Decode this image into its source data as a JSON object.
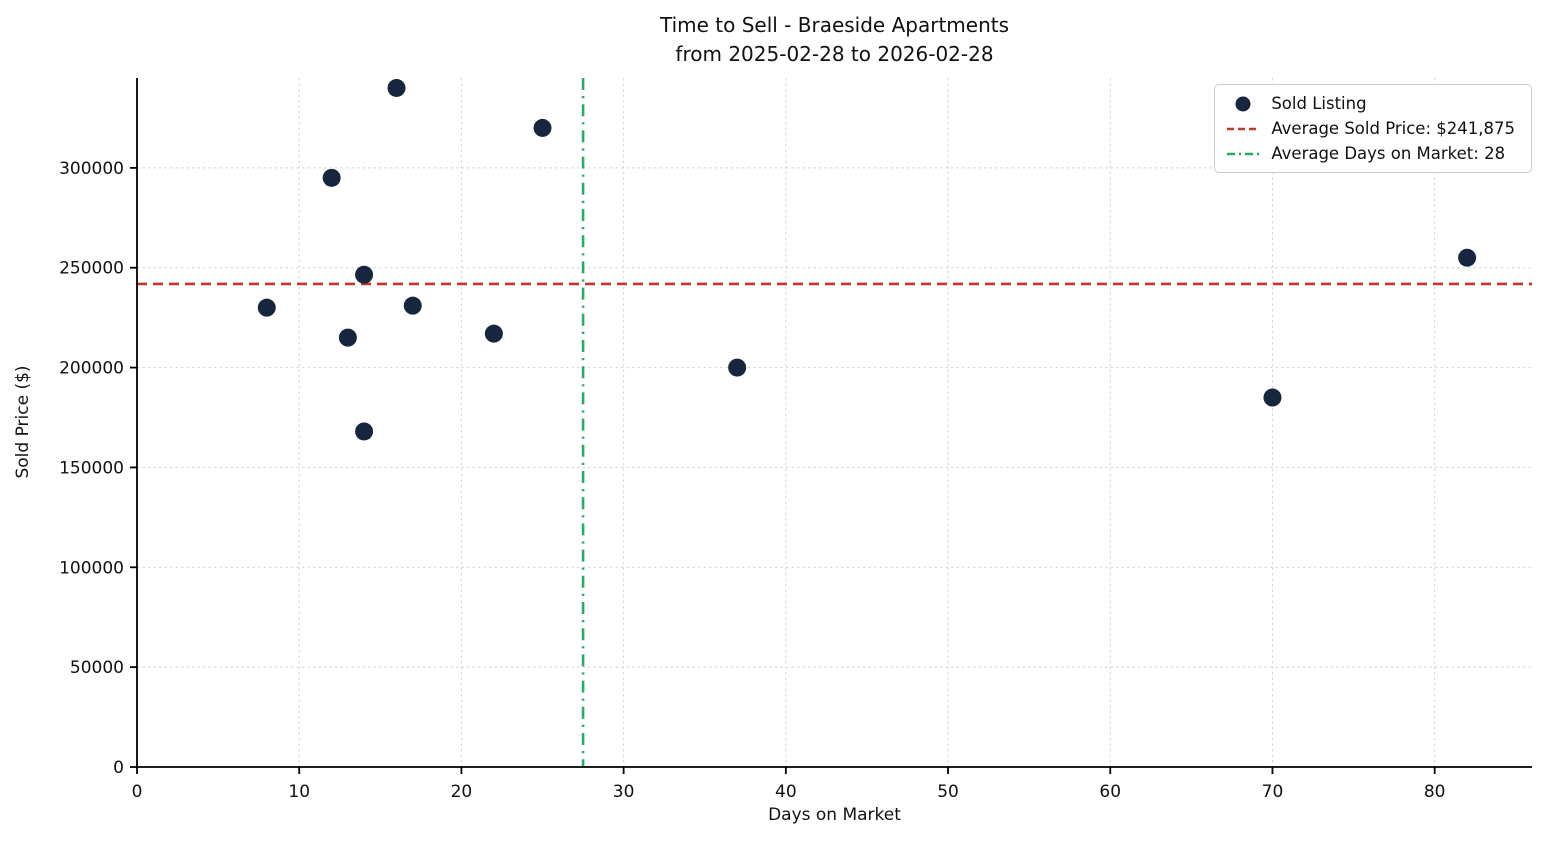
{
  "chart": {
    "title_line1": "Time to Sell - Braeside Apartments",
    "title_line2": "from 2025-02-28 to 2026-02-28",
    "xlabel": "Days on Market",
    "ylabel": "Sold Price ($)",
    "legend": [
      {
        "label": "Sold Listing",
        "type": "marker"
      },
      {
        "label": "Average Sold Price: $241,875",
        "type": "dashed-line"
      },
      {
        "label": "Average Days on Market: 28",
        "type": "dashdot-line"
      }
    ]
  },
  "chart_data": {
    "type": "scatter",
    "title": "Time to Sell - Braeside Apartments from 2025-02-28 to 2026-02-28",
    "xlabel": "Days on Market",
    "ylabel": "Sold Price ($)",
    "series": [
      {
        "name": "Sold Listing",
        "points": [
          [
            8,
            230000
          ],
          [
            12,
            295000
          ],
          [
            13,
            215000
          ],
          [
            14,
            246500
          ],
          [
            14,
            168000
          ],
          [
            16,
            340000
          ],
          [
            17,
            231000
          ],
          [
            22,
            217000
          ],
          [
            25,
            320000
          ],
          [
            37,
            200000
          ],
          [
            70,
            185000
          ],
          [
            82,
            255000
          ]
        ]
      }
    ],
    "avg_sold_price": 241875,
    "avg_sold_price_label": "Average Sold Price: $241,875",
    "avg_days_on_market": 27.5,
    "avg_days_on_market_label": "Average Days on Market: 28",
    "xlim": [
      0,
      86
    ],
    "ylim": [
      0,
      345000
    ],
    "xticks": [
      0,
      10,
      20,
      30,
      40,
      50,
      60,
      70,
      80
    ],
    "yticks": [
      0,
      50000,
      100000,
      150000,
      200000,
      250000,
      300000
    ],
    "grid": true,
    "legend_position": "upper right",
    "colors": {
      "marker": "#16263e",
      "avg_price_line": "#c0392b",
      "avg_days_line": "#27ae60",
      "grid": "#d4d4d4",
      "spine": "#000000"
    }
  }
}
